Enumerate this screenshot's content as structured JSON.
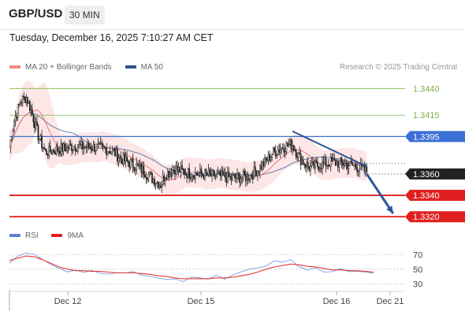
{
  "header": {
    "pair": "GBP/USD",
    "timeframe": "30 MIN"
  },
  "date_text": "Tuesday, December 16, 2025 7:10:27 AM CET",
  "copyright": "Research © 2025 Trading Central",
  "legend_main": [
    {
      "label": "MA 20 + Bollinger Bands",
      "color": "#f28b82"
    },
    {
      "label": "MA 50",
      "color": "#2f4f8f"
    }
  ],
  "legend_rsi": [
    {
      "label": "RSI",
      "color": "#5b7fd6"
    },
    {
      "label": "9MA",
      "color": "#e02020"
    }
  ],
  "colors": {
    "resistance": "#7cb342",
    "pivot": "#3b6fd6",
    "support": "#e02020",
    "price": "#222222",
    "arrow": "#2f5597",
    "band": "#fde2e2",
    "ma20": "#e57373",
    "ma50": "#5a6ea8",
    "rsi": "#6a8fe0",
    "rsi_ma": "#e53935"
  },
  "chart_data": [
    {
      "type": "candlestick",
      "title": "GBP/USD",
      "timeframe": "30 MIN",
      "ylim": [
        1.3315,
        1.3452
      ],
      "x_ticks": [
        "Dec 12",
        "Dec 15",
        "Dec 16",
        "Dec 21"
      ],
      "levels": [
        {
          "value": 1.344,
          "label": "1.3440",
          "kind": "resistance"
        },
        {
          "value": 1.3415,
          "label": "1.3415",
          "kind": "resistance"
        },
        {
          "value": 1.3395,
          "label": "1.3395",
          "kind": "pivot"
        },
        {
          "value": 1.336,
          "label": "1.3360",
          "kind": "last"
        },
        {
          "value": 1.334,
          "label": "1.3340",
          "kind": "support"
        },
        {
          "value": 1.332,
          "label": "1.3320",
          "kind": "support"
        }
      ],
      "price_path": [
        [
          0,
          1.3385
        ],
        [
          4,
          1.341
        ],
        [
          9,
          1.3428
        ],
        [
          14,
          1.3432
        ],
        [
          18,
          1.342
        ],
        [
          24,
          1.3396
        ],
        [
          30,
          1.338
        ],
        [
          40,
          1.3383
        ],
        [
          55,
          1.3386
        ],
        [
          70,
          1.3385
        ],
        [
          85,
          1.3382
        ],
        [
          95,
          1.3373
        ],
        [
          105,
          1.3368
        ],
        [
          112,
          1.3363
        ],
        [
          120,
          1.3355
        ],
        [
          126,
          1.335
        ],
        [
          130,
          1.336
        ],
        [
          138,
          1.3365
        ],
        [
          148,
          1.3361
        ],
        [
          160,
          1.336
        ],
        [
          175,
          1.3358
        ],
        [
          185,
          1.3356
        ],
        [
          200,
          1.3358
        ],
        [
          210,
          1.3367
        ],
        [
          220,
          1.338
        ],
        [
          228,
          1.3385
        ],
        [
          236,
          1.3388
        ],
        [
          242,
          1.3375
        ],
        [
          250,
          1.3366
        ],
        [
          258,
          1.3368
        ],
        [
          268,
          1.3371
        ],
        [
          278,
          1.337
        ],
        [
          290,
          1.3367
        ],
        [
          298,
          1.3362
        ]
      ],
      "trendline": [
        [
          236,
          1.34
        ],
        [
          298,
          1.3367
        ]
      ],
      "forecast_arrow": [
        [
          298,
          1.336
        ],
        [
          320,
          1.3323
        ]
      ],
      "x_max": 330
    },
    {
      "type": "line",
      "title": "RSI",
      "ylim": [
        25,
        80
      ],
      "y_ticks": [
        30,
        50,
        70
      ],
      "series": [
        {
          "name": "RSI",
          "values": [
            60,
            68,
            74,
            70,
            62,
            55,
            50,
            48,
            49,
            47,
            48,
            46,
            45,
            44,
            46,
            45,
            43,
            41,
            39,
            38,
            36,
            34,
            38,
            37,
            36,
            40,
            38,
            42,
            45,
            48,
            52,
            56,
            60,
            58,
            62,
            55,
            50,
            52,
            47,
            45,
            50,
            46,
            48,
            45,
            44
          ]
        },
        {
          "name": "9MA",
          "values": [
            62,
            65,
            68,
            67,
            63,
            58,
            53,
            50,
            48,
            48,
            47,
            47,
            46,
            45,
            45,
            45,
            44,
            43,
            41,
            40,
            38,
            37,
            37,
            37,
            37,
            38,
            38,
            39,
            41,
            43,
            46,
            50,
            53,
            55,
            57,
            56,
            54,
            53,
            51,
            49,
            49,
            48,
            48,
            47,
            46
          ]
        }
      ]
    }
  ]
}
